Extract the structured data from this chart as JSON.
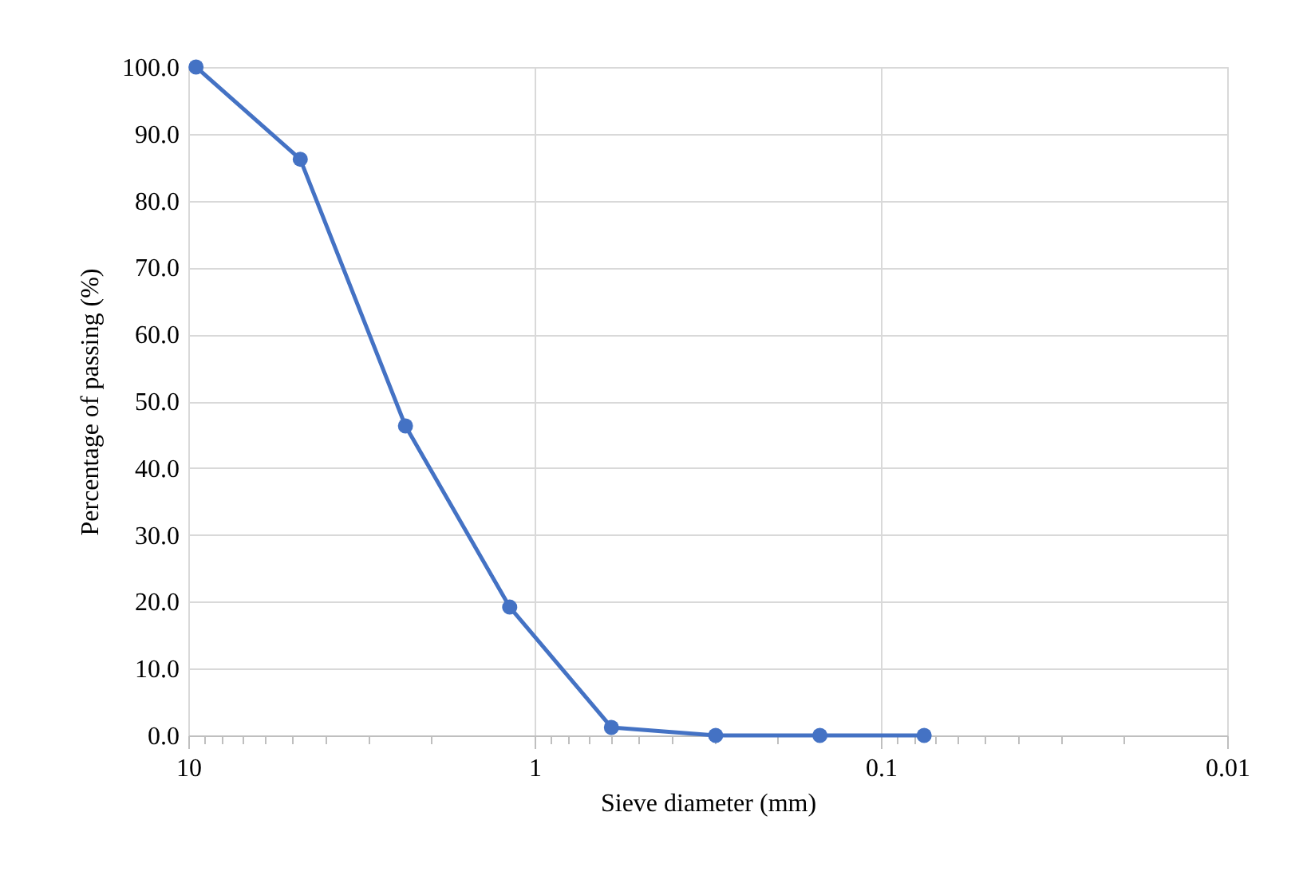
{
  "chart_data": {
    "type": "line",
    "xlabel": "Sieve diameter (mm)",
    "ylabel": "Percentage of passing (%)",
    "x": [
      9.5,
      4.75,
      2.36,
      1.18,
      0.6,
      0.3,
      0.15,
      0.075
    ],
    "series": [
      {
        "color": "#4472c4",
        "values": [
          100,
          86.2,
          46.3,
          19.2,
          1.2,
          0,
          0,
          0
        ]
      }
    ],
    "log": "x",
    "xlim": [
      10,
      0.01
    ],
    "ylim": [
      0,
      100
    ],
    "xticks": [
      10,
      {
        "value": 9,
        "label": null
      },
      {
        "value": 8,
        "label": null
      },
      {
        "value": 7,
        "label": null
      },
      {
        "value": 6,
        "label": null
      },
      {
        "value": 5,
        "label": null
      },
      {
        "value": 4,
        "label": null
      },
      {
        "value": 3,
        "label": null
      },
      {
        "value": 2,
        "label": null
      },
      1,
      {
        "value": 0.9,
        "label": null
      },
      {
        "value": 0.8,
        "label": null
      },
      {
        "value": 0.7,
        "label": null
      },
      {
        "value": 0.6,
        "label": null
      },
      {
        "value": 0.5,
        "label": null
      },
      {
        "value": 0.4,
        "label": null
      },
      {
        "value": 0.3,
        "label": null
      },
      {
        "value": 0.2,
        "label": null
      },
      0.1,
      {
        "value": 0.09,
        "label": null
      },
      {
        "value": 0.08,
        "label": null
      },
      {
        "value": 0.07,
        "label": null
      },
      {
        "value": 0.06,
        "label": null
      },
      {
        "value": 0.05,
        "label": null
      },
      {
        "value": 0.04,
        "label": null
      },
      {
        "value": 0.03,
        "label": null
      },
      {
        "value": 0.02,
        "label": null
      },
      0.01
    ],
    "yticks": [
      {
        "value": 0,
        "label": "0.0"
      },
      {
        "value": 10,
        "label": "10.0"
      },
      {
        "value": 20,
        "label": "20.0"
      },
      {
        "value": 30,
        "label": "30.0"
      },
      {
        "value": 40,
        "label": "40.0"
      },
      {
        "value": 50,
        "label": "50.0"
      },
      {
        "value": 60,
        "label": "60.0"
      },
      {
        "value": 70,
        "label": "70.0"
      },
      {
        "value": 80,
        "label": "80.0"
      },
      {
        "value": 90,
        "label": "90.0"
      },
      {
        "value": 100,
        "label": "100.0"
      }
    ],
    "grid": true,
    "marker": "circle",
    "line_style": "solid"
  }
}
